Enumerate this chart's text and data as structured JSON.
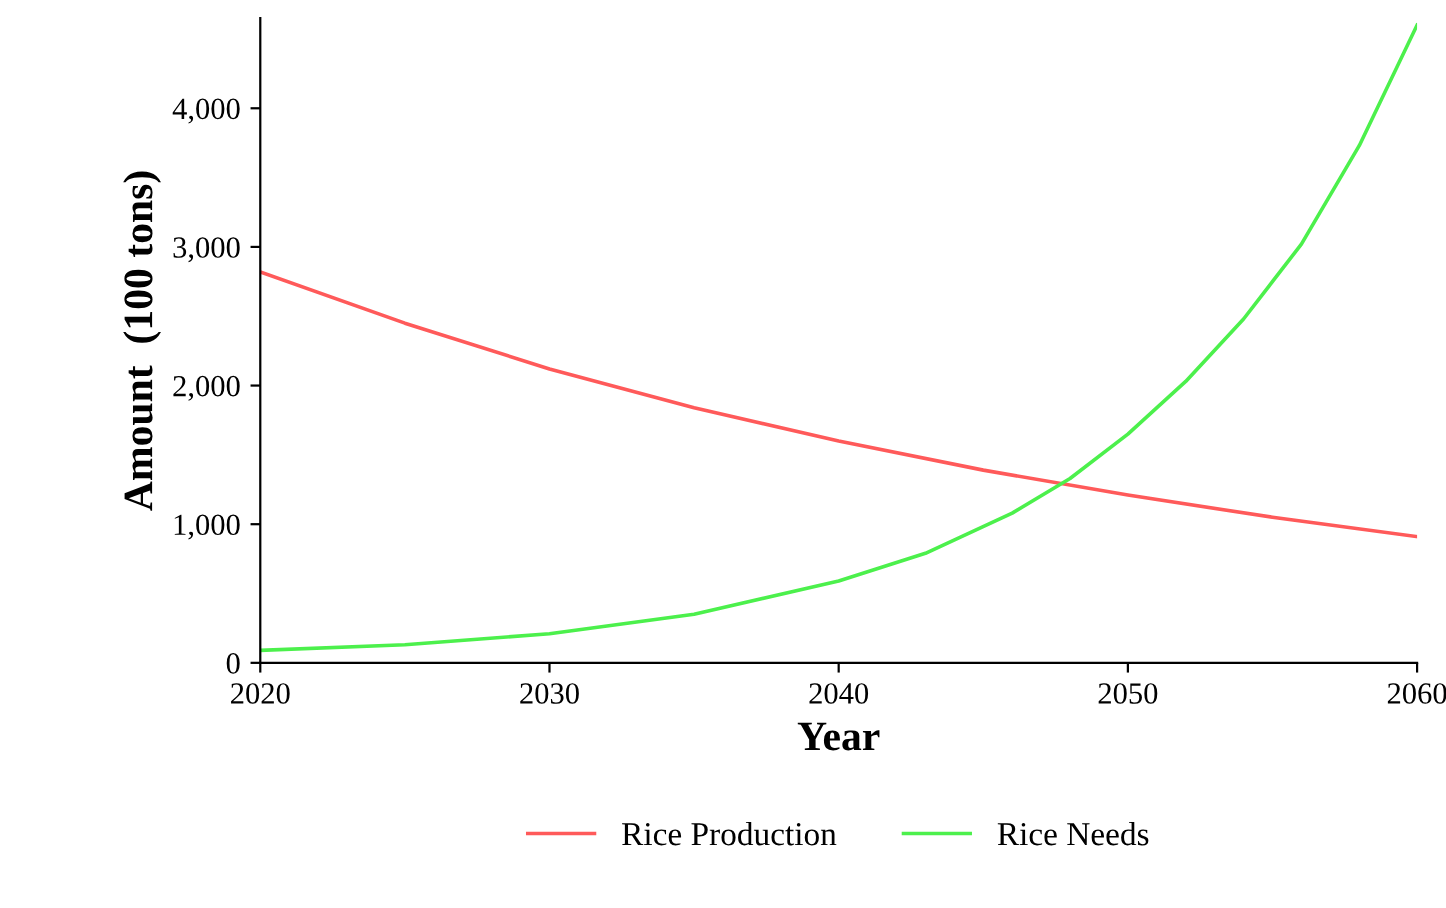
{
  "chart_data": {
    "type": "line",
    "xlabel": "Year",
    "ylabel": "Amount  (100 tons)",
    "xlim": [
      2020,
      2060
    ],
    "xticks": [
      2020,
      2030,
      2040,
      2050,
      2060
    ],
    "ylim": [
      0,
      4650
    ],
    "yticks": [
      {
        "value": 0,
        "label": "0"
      },
      {
        "value": 1000,
        "label": "1,000"
      },
      {
        "value": 2000,
        "label": "2,000"
      },
      {
        "value": 3000,
        "label": "3,000"
      },
      {
        "value": 4000,
        "label": "4,000"
      }
    ],
    "grid": false,
    "legend": "bottom",
    "marker": "none",
    "line_style": "solid",
    "series": [
      {
        "name": "Rice Production",
        "color": "#ff5a5a",
        "x": [
          2020,
          2025,
          2030,
          2035,
          2040,
          2045,
          2050,
          2055,
          2060
        ],
        "values": [
          2820,
          2450,
          2120,
          1840,
          1600,
          1390,
          1210,
          1050,
          910
        ]
      },
      {
        "name": "Rice Needs",
        "color": "#4cf04c",
        "x": [
          2020,
          2025,
          2030,
          2035,
          2040,
          2043,
          2046,
          2048,
          2050,
          2052,
          2054,
          2056,
          2058,
          2060
        ],
        "values": [
          90,
          130,
          210,
          350,
          590,
          790,
          1080,
          1330,
          1650,
          2030,
          2480,
          3020,
          3730,
          4600
        ]
      }
    ]
  }
}
